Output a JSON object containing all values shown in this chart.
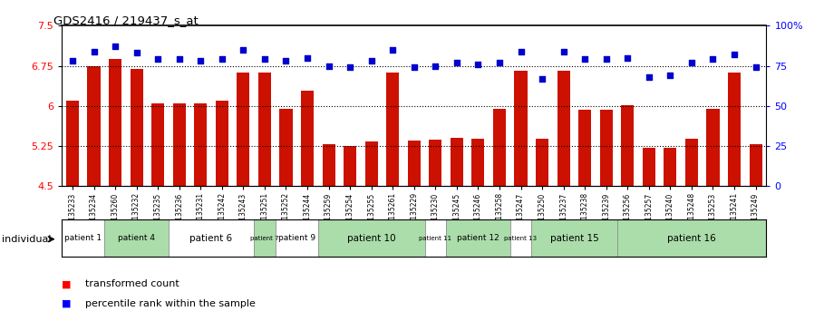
{
  "title": "GDS2416 / 219437_s_at",
  "samples": [
    "GSM135233",
    "GSM135234",
    "GSM135260",
    "GSM135232",
    "GSM135235",
    "GSM135236",
    "GSM135231",
    "GSM135242",
    "GSM135243",
    "GSM135251",
    "GSM135252",
    "GSM135244",
    "GSM135259",
    "GSM135254",
    "GSM135255",
    "GSM135261",
    "GSM135229",
    "GSM135230",
    "GSM135245",
    "GSM135246",
    "GSM135258",
    "GSM135247",
    "GSM135250",
    "GSM135237",
    "GSM135238",
    "GSM135239",
    "GSM135256",
    "GSM135257",
    "GSM135240",
    "GSM135248",
    "GSM135253",
    "GSM135241",
    "GSM135249"
  ],
  "bar_values": [
    6.1,
    6.75,
    6.88,
    6.7,
    6.05,
    6.05,
    6.05,
    6.1,
    6.62,
    6.62,
    5.95,
    6.28,
    5.28,
    5.25,
    5.33,
    6.62,
    5.35,
    5.37,
    5.4,
    5.38,
    5.95,
    6.65,
    5.38,
    6.65,
    5.93,
    5.93,
    6.02,
    5.22,
    5.22,
    5.38,
    5.95,
    6.62,
    5.28
  ],
  "percentile_values": [
    78,
    84,
    87,
    83,
    79,
    79,
    78,
    79,
    85,
    79,
    78,
    80,
    75,
    74,
    78,
    85,
    74,
    75,
    77,
    76,
    77,
    84,
    67,
    84,
    79,
    79,
    80,
    68,
    69,
    77,
    79,
    82,
    74
  ],
  "patient_groups": [
    {
      "label": "patient 1",
      "start": 0,
      "end": 2,
      "color": "#ffffff"
    },
    {
      "label": "patient 4",
      "start": 2,
      "end": 5,
      "color": "#aaddaa"
    },
    {
      "label": "patient 6",
      "start": 5,
      "end": 9,
      "color": "#ffffff"
    },
    {
      "label": "patient 7",
      "start": 9,
      "end": 10,
      "color": "#aaddaa"
    },
    {
      "label": "patient 9",
      "start": 10,
      "end": 12,
      "color": "#ffffff"
    },
    {
      "label": "patient 10",
      "start": 12,
      "end": 17,
      "color": "#aaddaa"
    },
    {
      "label": "patient 11",
      "start": 17,
      "end": 18,
      "color": "#ffffff"
    },
    {
      "label": "patient 12",
      "start": 18,
      "end": 21,
      "color": "#aaddaa"
    },
    {
      "label": "patient 13",
      "start": 21,
      "end": 22,
      "color": "#ffffff"
    },
    {
      "label": "patient 15",
      "start": 22,
      "end": 26,
      "color": "#aaddaa"
    },
    {
      "label": "patient 16",
      "start": 26,
      "end": 33,
      "color": "#aaddaa"
    }
  ],
  "ylim_left": [
    4.5,
    7.5
  ],
  "ylim_right": [
    0,
    100
  ],
  "yticks_left": [
    4.5,
    5.25,
    6.0,
    6.75,
    7.5
  ],
  "yticks_right": [
    0,
    25,
    50,
    75,
    100
  ],
  "ytick_labels_left": [
    "4.5",
    "5.25",
    "6",
    "6.75",
    "7.5"
  ],
  "ytick_labels_right": [
    "0",
    "25",
    "50",
    "75",
    "100%"
  ],
  "hlines": [
    5.25,
    6.0,
    6.75
  ],
  "bar_color": "#cc1100",
  "dot_color": "#0000cc",
  "bar_width": 0.6,
  "background_color": "#ffffff"
}
